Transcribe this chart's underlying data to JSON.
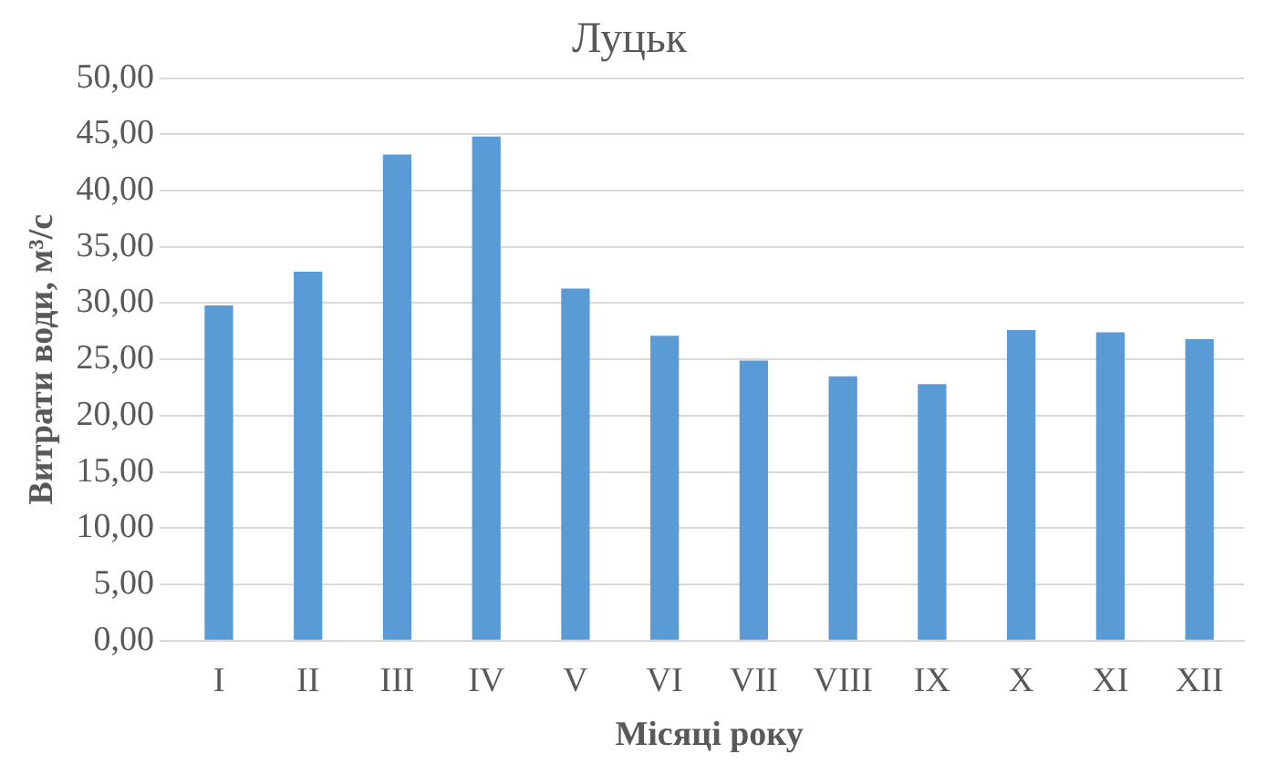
{
  "chart_data": {
    "type": "bar",
    "title": "Луцьк",
    "xlabel": "Місяці року",
    "ylabel": "Витрати води, м³/с",
    "categories": [
      "I",
      "II",
      "III",
      "IV",
      "V",
      "VI",
      "VII",
      "VIII",
      "IX",
      "X",
      "XI",
      "XII"
    ],
    "values": [
      29.8,
      32.8,
      43.2,
      44.8,
      31.3,
      27.1,
      24.9,
      23.5,
      22.8,
      27.6,
      27.4,
      26.8
    ],
    "color": "#5b9bd5",
    "ylim": [
      0,
      50
    ],
    "yticks": [
      {
        "value": 0,
        "label": "0,00"
      },
      {
        "value": 5,
        "label": "5,00"
      },
      {
        "value": 10,
        "label": "10,00"
      },
      {
        "value": 15,
        "label": "15,00"
      },
      {
        "value": 20,
        "label": "20,00"
      },
      {
        "value": 25,
        "label": "25,00"
      },
      {
        "value": 30,
        "label": "30,00"
      },
      {
        "value": 35,
        "label": "35,00"
      },
      {
        "value": 40,
        "label": "40,00"
      },
      {
        "value": 45,
        "label": "45,00"
      },
      {
        "value": 50,
        "label": "50,00"
      }
    ],
    "grid": "y",
    "legend": false
  }
}
